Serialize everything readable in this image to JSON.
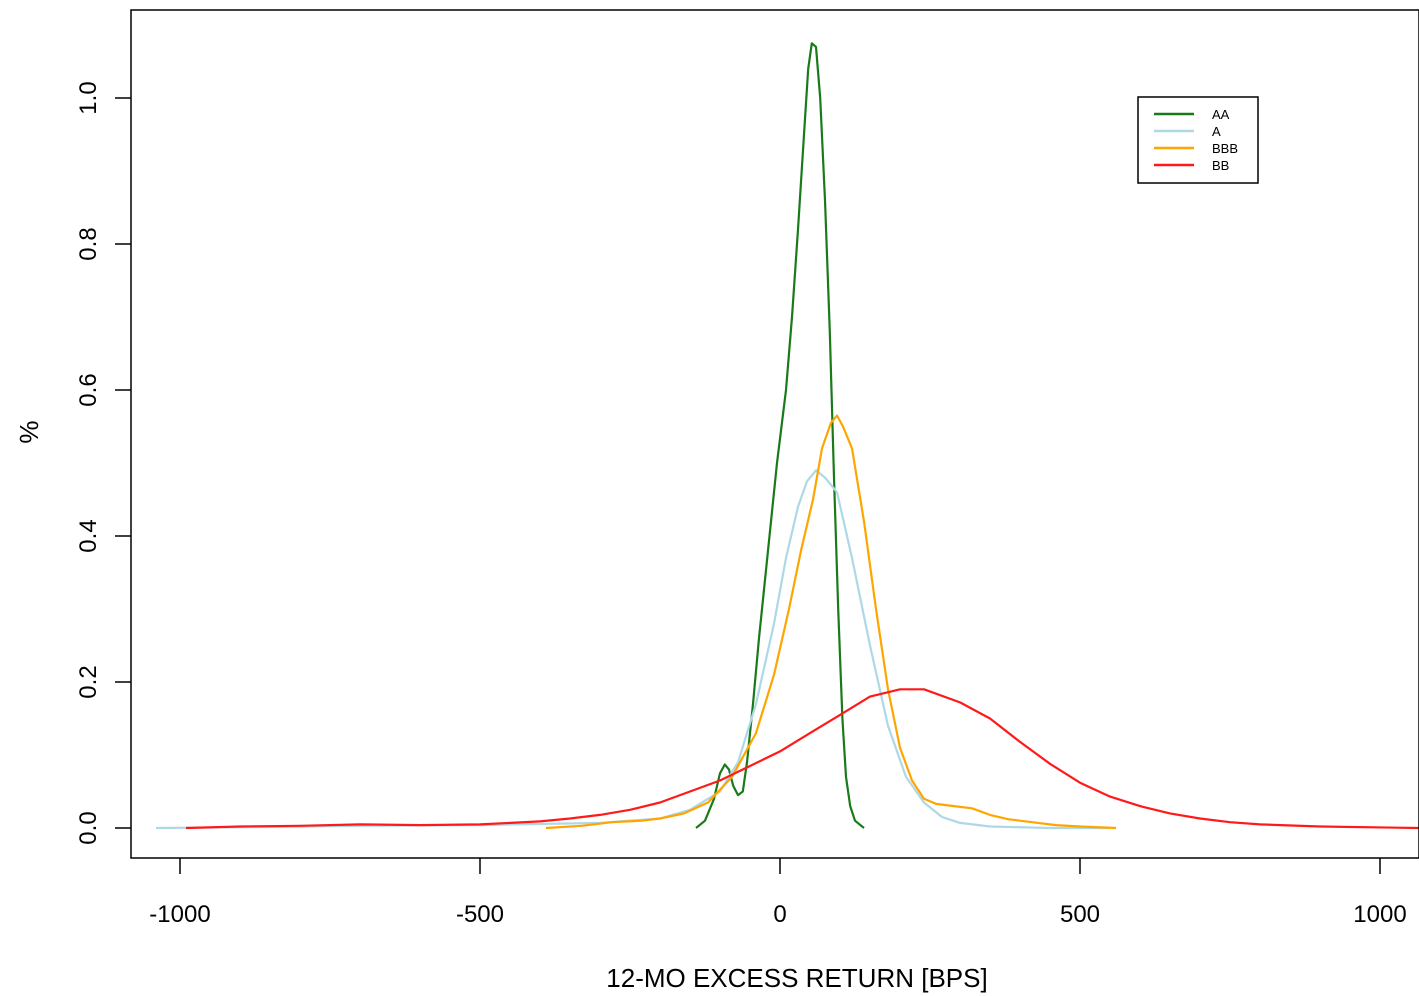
{
  "chart_data": {
    "type": "line",
    "title": "",
    "xlabel": "12-MO EXCESS RETURN [BPS]",
    "ylabel": "%",
    "xlim": [
      -1080,
      1065
    ],
    "ylim": [
      -0.04,
      1.12
    ],
    "x_ticks": [
      -1000,
      -500,
      0,
      500,
      1000
    ],
    "x_tick_labels": [
      "-1000",
      "-500",
      "0",
      "500",
      "1000"
    ],
    "y_ticks": [
      0.0,
      0.2,
      0.4,
      0.6,
      0.8,
      1.0
    ],
    "y_tick_labels": [
      "0.0",
      "0.2",
      "0.4",
      "0.6",
      "0.8",
      "1.0"
    ],
    "grid": false,
    "legend_position": "top-right",
    "series": [
      {
        "name": "AA",
        "color": "#1a7a1a",
        "points": [
          [
            -140,
            0.0
          ],
          [
            -125,
            0.01
          ],
          [
            -110,
            0.04
          ],
          [
            -100,
            0.075
          ],
          [
            -92,
            0.087
          ],
          [
            -85,
            0.08
          ],
          [
            -78,
            0.058
          ],
          [
            -70,
            0.045
          ],
          [
            -62,
            0.05
          ],
          [
            -55,
            0.09
          ],
          [
            -45,
            0.17
          ],
          [
            -35,
            0.26
          ],
          [
            -20,
            0.38
          ],
          [
            -5,
            0.5
          ],
          [
            10,
            0.6
          ],
          [
            20,
            0.7
          ],
          [
            30,
            0.82
          ],
          [
            40,
            0.95
          ],
          [
            47,
            1.04
          ],
          [
            53,
            1.075
          ],
          [
            60,
            1.07
          ],
          [
            67,
            1.0
          ],
          [
            75,
            0.86
          ],
          [
            83,
            0.68
          ],
          [
            90,
            0.48
          ],
          [
            97,
            0.3
          ],
          [
            104,
            0.15
          ],
          [
            110,
            0.07
          ],
          [
            117,
            0.03
          ],
          [
            125,
            0.01
          ],
          [
            140,
            0.0
          ]
        ]
      },
      {
        "name": "A",
        "color": "#add8e6",
        "points": [
          [
            -1040,
            0.0
          ],
          [
            -900,
            0.001
          ],
          [
            -700,
            0.003
          ],
          [
            -500,
            0.004
          ],
          [
            -300,
            0.007
          ],
          [
            -200,
            0.013
          ],
          [
            -150,
            0.025
          ],
          [
            -100,
            0.05
          ],
          [
            -70,
            0.09
          ],
          [
            -40,
            0.17
          ],
          [
            -10,
            0.28
          ],
          [
            10,
            0.37
          ],
          [
            30,
            0.44
          ],
          [
            45,
            0.475
          ],
          [
            60,
            0.49
          ],
          [
            75,
            0.48
          ],
          [
            95,
            0.46
          ],
          [
            120,
            0.37
          ],
          [
            150,
            0.25
          ],
          [
            180,
            0.14
          ],
          [
            210,
            0.07
          ],
          [
            240,
            0.035
          ],
          [
            270,
            0.015
          ],
          [
            300,
            0.007
          ],
          [
            350,
            0.002
          ],
          [
            450,
            0.0
          ],
          [
            550,
            0.0
          ]
        ]
      },
      {
        "name": "BBB",
        "color": "#ffa500",
        "points": [
          [
            -390,
            0.0
          ],
          [
            -330,
            0.003
          ],
          [
            -280,
            0.008
          ],
          [
            -230,
            0.01
          ],
          [
            -200,
            0.013
          ],
          [
            -160,
            0.02
          ],
          [
            -120,
            0.035
          ],
          [
            -80,
            0.07
          ],
          [
            -40,
            0.13
          ],
          [
            -10,
            0.21
          ],
          [
            15,
            0.3
          ],
          [
            35,
            0.38
          ],
          [
            55,
            0.45
          ],
          [
            70,
            0.52
          ],
          [
            85,
            0.555
          ],
          [
            95,
            0.565
          ],
          [
            105,
            0.55
          ],
          [
            120,
            0.52
          ],
          [
            140,
            0.42
          ],
          [
            160,
            0.3
          ],
          [
            180,
            0.19
          ],
          [
            200,
            0.11
          ],
          [
            220,
            0.065
          ],
          [
            240,
            0.04
          ],
          [
            260,
            0.033
          ],
          [
            290,
            0.03
          ],
          [
            320,
            0.027
          ],
          [
            350,
            0.018
          ],
          [
            380,
            0.012
          ],
          [
            420,
            0.008
          ],
          [
            460,
            0.004
          ],
          [
            500,
            0.002
          ],
          [
            560,
            0.0
          ]
        ]
      },
      {
        "name": "BB",
        "color": "#ff1a1a",
        "points": [
          [
            -990,
            0.0
          ],
          [
            -900,
            0.002
          ],
          [
            -800,
            0.003
          ],
          [
            -700,
            0.005
          ],
          [
            -600,
            0.004
          ],
          [
            -500,
            0.005
          ],
          [
            -400,
            0.009
          ],
          [
            -350,
            0.013
          ],
          [
            -300,
            0.018
          ],
          [
            -250,
            0.025
          ],
          [
            -200,
            0.035
          ],
          [
            -150,
            0.05
          ],
          [
            -100,
            0.065
          ],
          [
            -50,
            0.085
          ],
          [
            0,
            0.105
          ],
          [
            50,
            0.13
          ],
          [
            100,
            0.155
          ],
          [
            150,
            0.18
          ],
          [
            200,
            0.19
          ],
          [
            240,
            0.19
          ],
          [
            300,
            0.172
          ],
          [
            350,
            0.15
          ],
          [
            400,
            0.118
          ],
          [
            450,
            0.088
          ],
          [
            500,
            0.062
          ],
          [
            550,
            0.043
          ],
          [
            600,
            0.03
          ],
          [
            650,
            0.02
          ],
          [
            700,
            0.013
          ],
          [
            750,
            0.008
          ],
          [
            800,
            0.005
          ],
          [
            900,
            0.002
          ],
          [
            1065,
            0.0
          ]
        ]
      }
    ]
  }
}
